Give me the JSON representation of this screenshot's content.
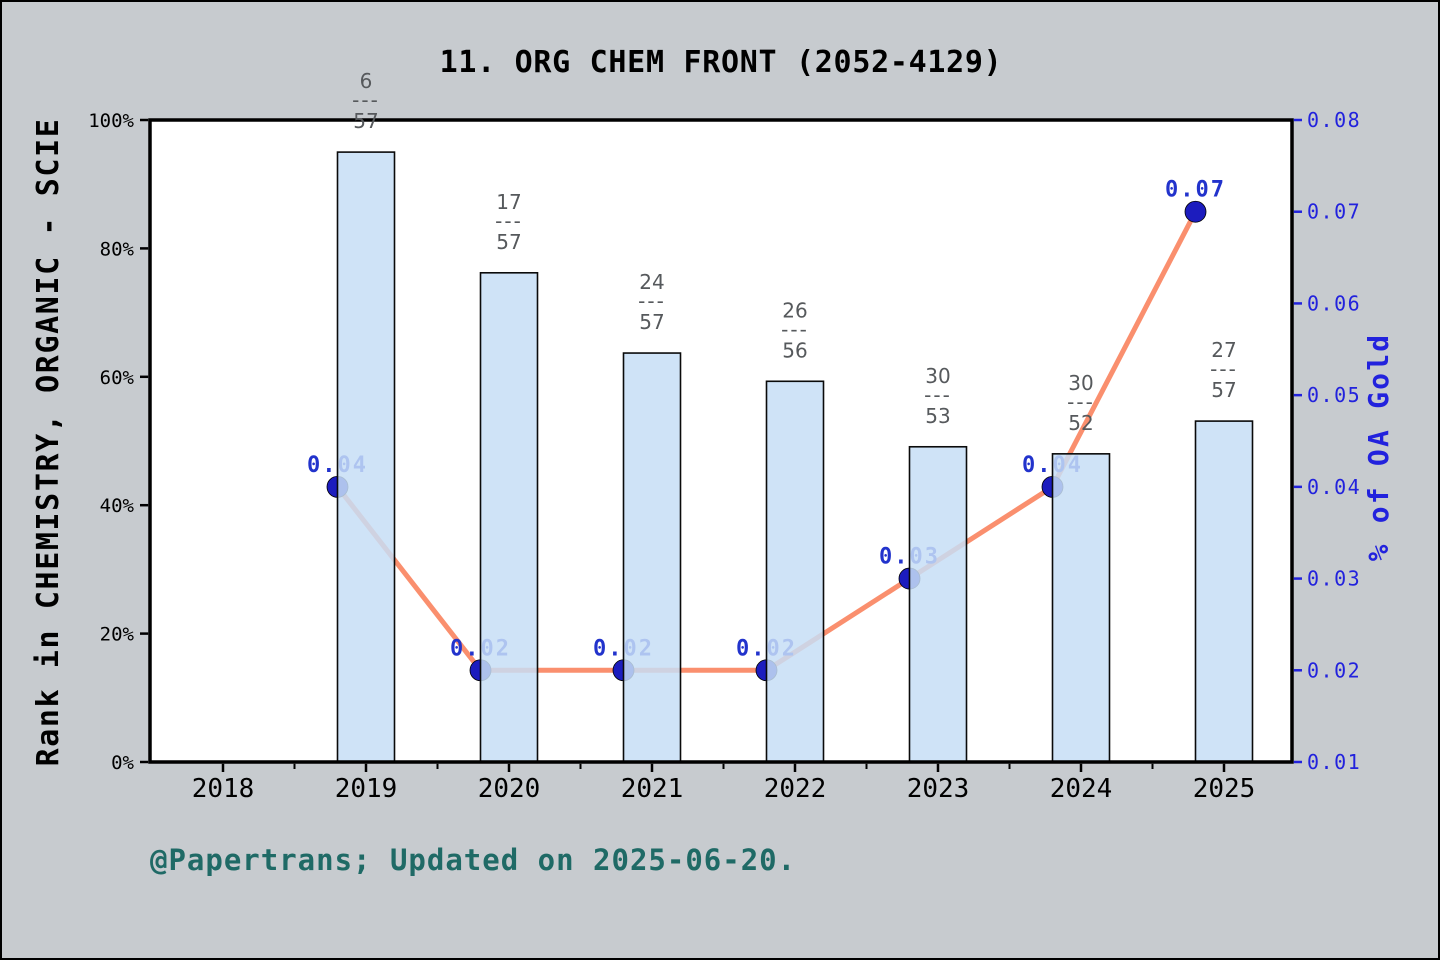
{
  "title": "11. ORG CHEM FRONT (2052-4129)",
  "caption": "@Papertrans; Updated on 2025-06-20.",
  "colors": {
    "background": "#c7cbcf",
    "plot_background": "#ffffff",
    "axis": "#000000",
    "bar_fill": "#c7def6",
    "bar_edge": "#0a0a0a",
    "line": "#fa8f6e",
    "marker": "#1c1cbe",
    "point_label": "#2233cc",
    "right_axis_color": "#2222dd",
    "fraction_label": "#56595c",
    "caption_color": "#1f6a66",
    "tick_label_color": "#000000"
  },
  "chart_data": {
    "type": "bar+line",
    "x": [
      2019,
      2020,
      2021,
      2022,
      2023,
      2024,
      2025
    ],
    "x_axis_ticks": [
      "2018",
      "2019",
      "2020",
      "2021",
      "2022",
      "2023",
      "2024",
      "2025"
    ],
    "x_range": [
      2017.5,
      2025.5
    ],
    "grid": false,
    "legend": null,
    "bar_series": {
      "name": "Rank in CHEMISTRY, ORGANIC - SCIE",
      "unit": "percent",
      "values_percent": [
        95.0,
        76.2,
        63.7,
        59.3,
        49.1,
        48.0,
        53.1
      ],
      "rank_labels": [
        {
          "numerator": "6",
          "divider": "---",
          "denominator": "57"
        },
        {
          "numerator": "17",
          "divider": "---",
          "denominator": "57"
        },
        {
          "numerator": "24",
          "divider": "---",
          "denominator": "57"
        },
        {
          "numerator": "26",
          "divider": "---",
          "denominator": "56"
        },
        {
          "numerator": "30",
          "divider": "---",
          "denominator": "53"
        },
        {
          "numerator": "30",
          "divider": "---",
          "denominator": "52"
        },
        {
          "numerator": "27",
          "divider": "---",
          "denominator": "57"
        }
      ]
    },
    "line_series": {
      "name": "% of OA Gold",
      "values": [
        0.04,
        0.02,
        0.02,
        0.02,
        0.03,
        0.04,
        0.07
      ],
      "point_labels": [
        "0.04",
        "0.02",
        "0.02",
        "0.02",
        "0.03",
        "0.04",
        "0.07"
      ]
    },
    "left_axis": {
      "label": "Rank in CHEMISTRY, ORGANIC - SCIE",
      "ticks": [
        "0%",
        "20%",
        "40%",
        "60%",
        "80%",
        "100%"
      ],
      "tick_values": [
        0,
        20,
        40,
        60,
        80,
        100
      ],
      "range": [
        0,
        100
      ]
    },
    "right_axis": {
      "label": "% of OA Gold",
      "ticks": [
        "0.01",
        "0.02",
        "0.03",
        "0.04",
        "0.05",
        "0.06",
        "0.07",
        "0.08"
      ],
      "tick_values": [
        0.01,
        0.02,
        0.03,
        0.04,
        0.05,
        0.06,
        0.07,
        0.08
      ],
      "range": [
        0.01,
        0.08
      ]
    }
  }
}
